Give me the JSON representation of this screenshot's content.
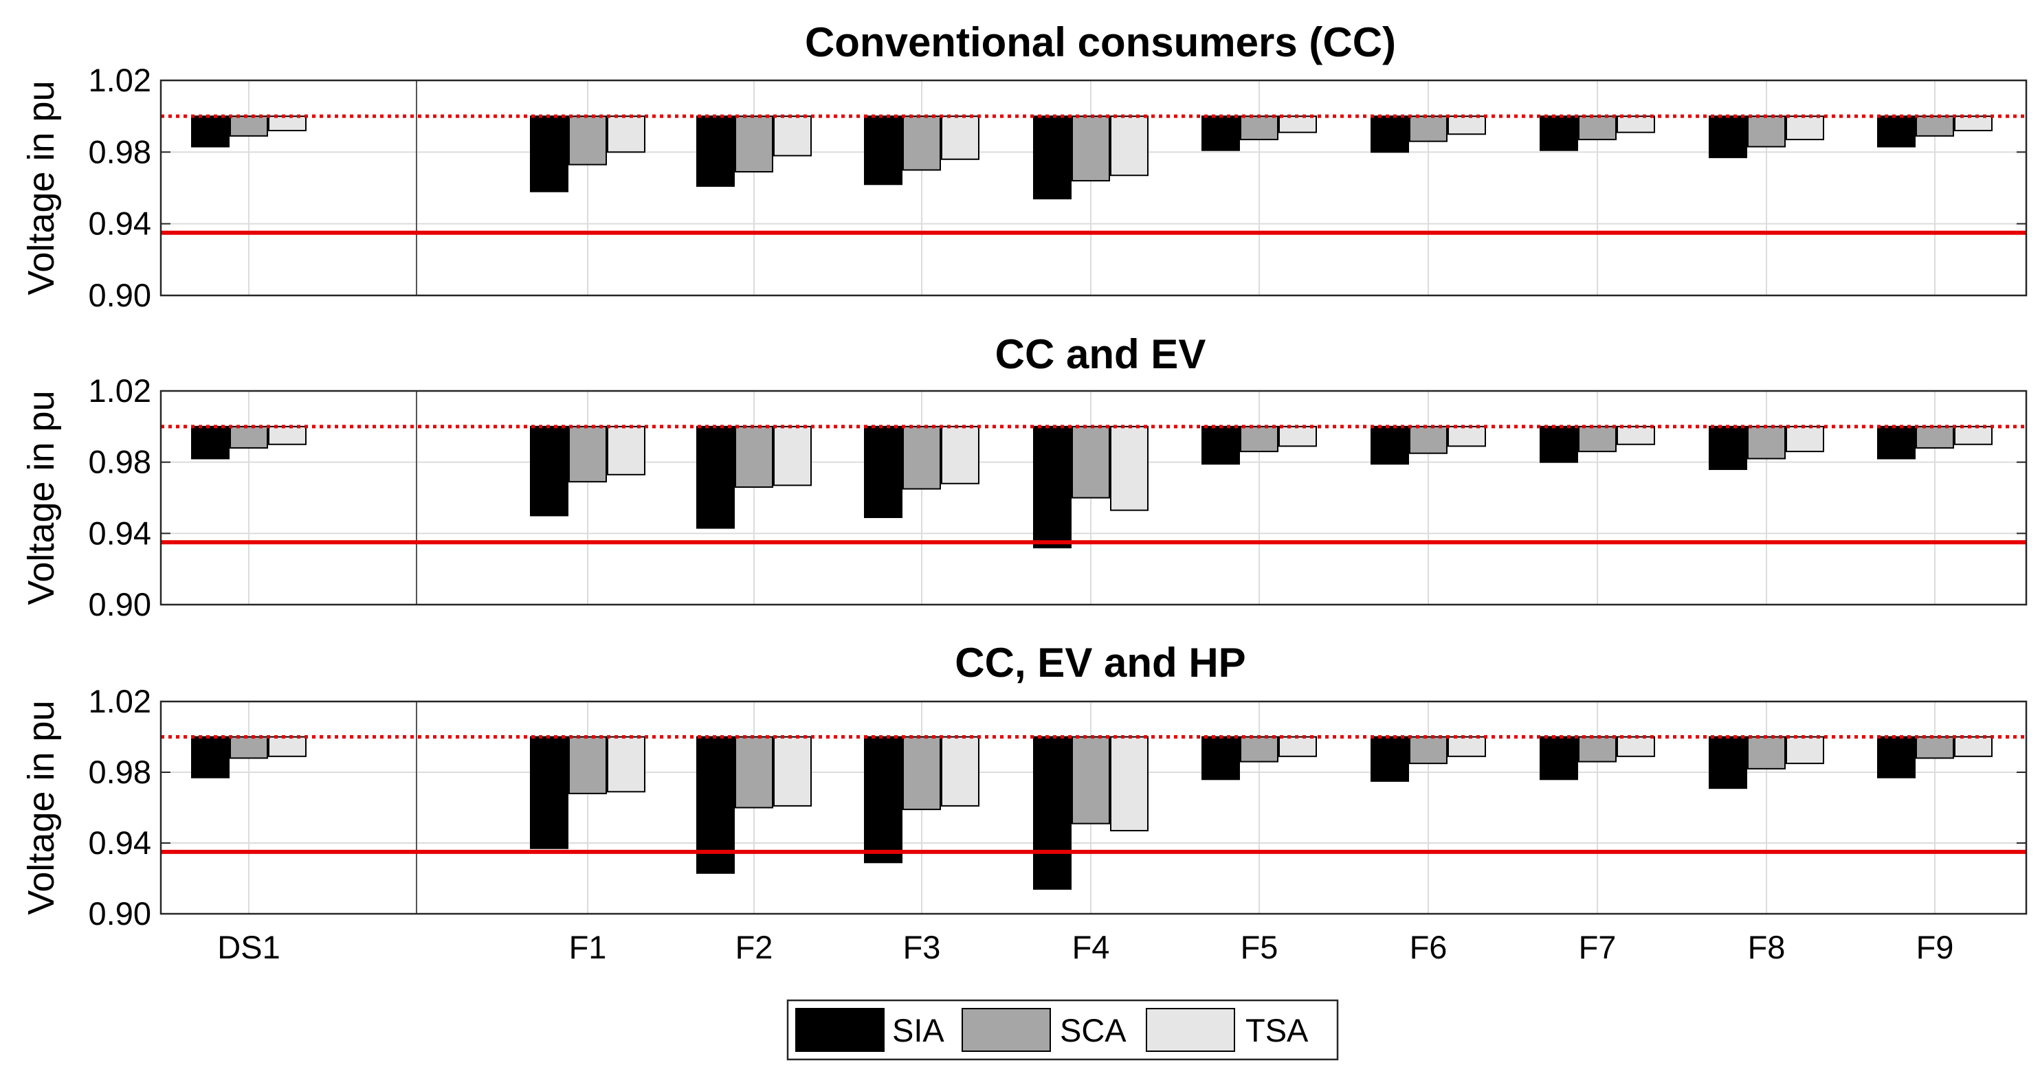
{
  "colors": {
    "SIA": "#000000",
    "SCA": "#a6a6a6",
    "TSA": "#e6e6e6",
    "limit": "#e60000",
    "grid": "#dcdcdc"
  },
  "legend": [
    "SIA",
    "SCA",
    "TSA"
  ],
  "chart_data": [
    {
      "type": "bar",
      "title": "Conventional consumers (CC)",
      "ylabel": "Voltage in pu",
      "ylim": [
        0.9,
        1.02
      ],
      "yticks": [
        "0.90",
        "0.94",
        "0.98",
        "1.02"
      ],
      "baseline": 1.0,
      "upper_reference": 1.0,
      "lower_limit": 0.935,
      "categories": [
        "DS1",
        "F1",
        "F2",
        "F3",
        "F4",
        "F5",
        "F6",
        "F7",
        "F8",
        "F9"
      ],
      "series": [
        {
          "name": "SIA",
          "values": [
            0.983,
            0.958,
            0.961,
            0.962,
            0.954,
            0.981,
            0.98,
            0.981,
            0.977,
            0.983
          ]
        },
        {
          "name": "SCA",
          "values": [
            0.989,
            0.973,
            0.969,
            0.97,
            0.964,
            0.987,
            0.986,
            0.987,
            0.983,
            0.989
          ]
        },
        {
          "name": "TSA",
          "values": [
            0.992,
            0.98,
            0.978,
            0.976,
            0.967,
            0.991,
            0.99,
            0.991,
            0.987,
            0.992
          ]
        }
      ]
    },
    {
      "type": "bar",
      "title": "CC and EV",
      "ylabel": "Voltage in pu",
      "ylim": [
        0.9,
        1.02
      ],
      "yticks": [
        "0.90",
        "0.94",
        "0.98",
        "1.02"
      ],
      "baseline": 1.0,
      "upper_reference": 1.0,
      "lower_limit": 0.935,
      "categories": [
        "DS1",
        "F1",
        "F2",
        "F3",
        "F4",
        "F5",
        "F6",
        "F7",
        "F8",
        "F9"
      ],
      "series": [
        {
          "name": "SIA",
          "values": [
            0.982,
            0.95,
            0.943,
            0.949,
            0.932,
            0.979,
            0.979,
            0.98,
            0.976,
            0.982
          ]
        },
        {
          "name": "SCA",
          "values": [
            0.988,
            0.969,
            0.966,
            0.965,
            0.96,
            0.986,
            0.985,
            0.986,
            0.982,
            0.988
          ]
        },
        {
          "name": "TSA",
          "values": [
            0.99,
            0.973,
            0.967,
            0.968,
            0.953,
            0.989,
            0.989,
            0.99,
            0.986,
            0.99
          ]
        }
      ]
    },
    {
      "type": "bar",
      "title": "CC, EV and HP",
      "ylabel": "Voltage in pu",
      "ylim": [
        0.9,
        1.02
      ],
      "yticks": [
        "0.90",
        "0.94",
        "0.98",
        "1.02"
      ],
      "baseline": 1.0,
      "upper_reference": 1.0,
      "lower_limit": 0.935,
      "categories": [
        "DS1",
        "F1",
        "F2",
        "F3",
        "F4",
        "F5",
        "F6",
        "F7",
        "F8",
        "F9"
      ],
      "series": [
        {
          "name": "SIA",
          "values": [
            0.977,
            0.937,
            0.923,
            0.929,
            0.914,
            0.976,
            0.975,
            0.976,
            0.971,
            0.977
          ]
        },
        {
          "name": "SCA",
          "values": [
            0.988,
            0.968,
            0.96,
            0.959,
            0.951,
            0.986,
            0.985,
            0.986,
            0.982,
            0.988
          ]
        },
        {
          "name": "TSA",
          "values": [
            0.989,
            0.969,
            0.961,
            0.961,
            0.947,
            0.989,
            0.989,
            0.989,
            0.985,
            0.989
          ]
        }
      ]
    }
  ]
}
